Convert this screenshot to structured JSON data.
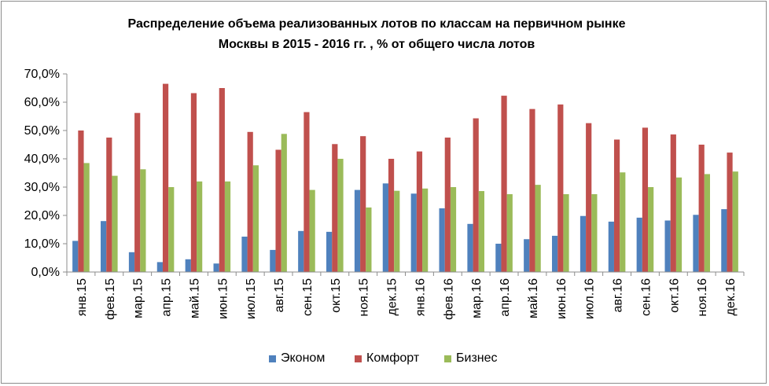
{
  "chart_data": {
    "type": "bar",
    "title_lines": [
      "Распределение объема реализованных лотов по классам на первичном рынке",
      "Москвы в 2015 - 2016 гг. , % от общего числа лотов"
    ],
    "categories": [
      "янв.15",
      "фев.15",
      "мар.15",
      "апр.15",
      "май.15",
      "июн.15",
      "июл.15",
      "авг.15",
      "сен.15",
      "окт.15",
      "ноя.15",
      "дек.15",
      "янв.16",
      "фев.16",
      "мар.16",
      "апр.16",
      "май.16",
      "июн.16",
      "июл.16",
      "авг.16",
      "сен.16",
      "окт.16",
      "ноя.16",
      "дек.16"
    ],
    "series": [
      {
        "name": "Эконом",
        "color": "#4f81bd",
        "values": [
          11.0,
          18.0,
          7.0,
          3.5,
          4.5,
          3.0,
          12.5,
          7.8,
          14.5,
          14.2,
          29.0,
          31.3,
          27.7,
          22.5,
          17.0,
          10.0,
          11.6,
          12.8,
          19.8,
          17.8,
          19.2,
          18.2,
          20.2,
          22.2
        ]
      },
      {
        "name": "Комфорт",
        "color": "#c0504d",
        "values": [
          50.0,
          47.5,
          56.2,
          66.5,
          63.2,
          65.0,
          49.5,
          43.2,
          56.5,
          45.2,
          48.0,
          40.0,
          42.6,
          47.5,
          54.3,
          62.3,
          57.6,
          59.2,
          52.6,
          46.8,
          51.0,
          48.6,
          45.0,
          42.2
        ]
      },
      {
        "name": "Бизнес",
        "color": "#9bbb59",
        "values": [
          38.5,
          34.0,
          36.3,
          30.0,
          32.0,
          32.0,
          37.7,
          48.8,
          29.0,
          40.0,
          22.8,
          28.7,
          29.5,
          30.0,
          28.6,
          27.5,
          30.8,
          27.5,
          27.5,
          35.2,
          30.0,
          33.4,
          34.6,
          35.5
        ]
      }
    ],
    "y_ticks": [
      "0,0%",
      "10,0%",
      "20,0%",
      "30,0%",
      "40,0%",
      "50,0%",
      "60,0%",
      "70,0%"
    ],
    "ylim": [
      0,
      70
    ],
    "grid": false,
    "legend_position": "bottom"
  }
}
